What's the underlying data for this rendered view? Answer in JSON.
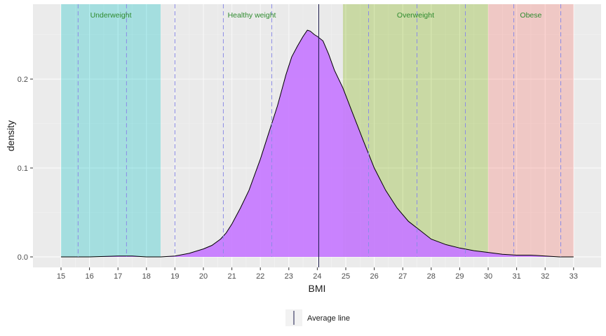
{
  "chart_data": {
    "type": "area",
    "xlabel": "BMI",
    "ylabel": "density",
    "xlim": [
      15,
      33
    ],
    "ylim": [
      0,
      0.26
    ],
    "x_ticks": [
      15,
      16,
      17,
      18,
      19,
      20,
      21,
      22,
      23,
      24,
      25,
      26,
      27,
      28,
      29,
      30,
      31,
      32,
      33
    ],
    "y_ticks": [
      0.0,
      0.1,
      0.2
    ],
    "y_tick_labels": [
      "0.0",
      "0.1",
      "0.2"
    ],
    "grid": true,
    "density": {
      "fill": "#c77cff",
      "x": [
        15.0,
        16.0,
        17.0,
        17.5,
        18.0,
        18.5,
        19.0,
        19.5,
        20.0,
        20.3,
        20.6,
        20.8,
        21.0,
        21.3,
        21.6,
        22.0,
        22.3,
        22.6,
        22.9,
        23.1,
        23.3,
        23.5,
        23.65,
        23.75,
        23.9,
        24.0,
        24.2,
        24.4,
        24.6,
        24.9,
        25.2,
        25.6,
        26.0,
        26.4,
        26.8,
        27.2,
        27.6,
        28.0,
        28.5,
        29.0,
        29.5,
        30.0,
        30.5,
        31.0,
        31.5,
        32.0,
        32.5,
        33.0
      ],
      "y": [
        0.0,
        0.0,
        0.001,
        0.001,
        0.0,
        0.0,
        0.001,
        0.004,
        0.009,
        0.013,
        0.02,
        0.027,
        0.037,
        0.055,
        0.075,
        0.11,
        0.14,
        0.17,
        0.205,
        0.225,
        0.237,
        0.248,
        0.255,
        0.254,
        0.25,
        0.248,
        0.243,
        0.228,
        0.21,
        0.19,
        0.165,
        0.132,
        0.1,
        0.075,
        0.055,
        0.04,
        0.03,
        0.02,
        0.014,
        0.01,
        0.007,
        0.005,
        0.003,
        0.002,
        0.002,
        0.001,
        0.0,
        0.0
      ]
    },
    "categories": [
      {
        "label": "Underweight",
        "from": 15,
        "to": 18.5,
        "color": "#00bfc4"
      },
      {
        "label": "Healthy weight",
        "from": 18.5,
        "to": 24.9,
        "color": "#e8e8e8"
      },
      {
        "label": "Overweight",
        "from": 24.9,
        "to": 30,
        "color": "#7cae00"
      },
      {
        "label": "Obese",
        "from": 30,
        "to": 33,
        "color": "#f8766d"
      }
    ],
    "average_line": {
      "label": "Average line",
      "x": 24.05,
      "color": "#1a1a4a"
    },
    "dashed_lines": {
      "color": "#8c8ce6",
      "x": [
        15.6,
        17.3,
        19.0,
        20.7,
        22.4,
        25.8,
        27.5,
        29.2,
        30.9,
        32.55
      ]
    },
    "legend_position": "bottom"
  }
}
